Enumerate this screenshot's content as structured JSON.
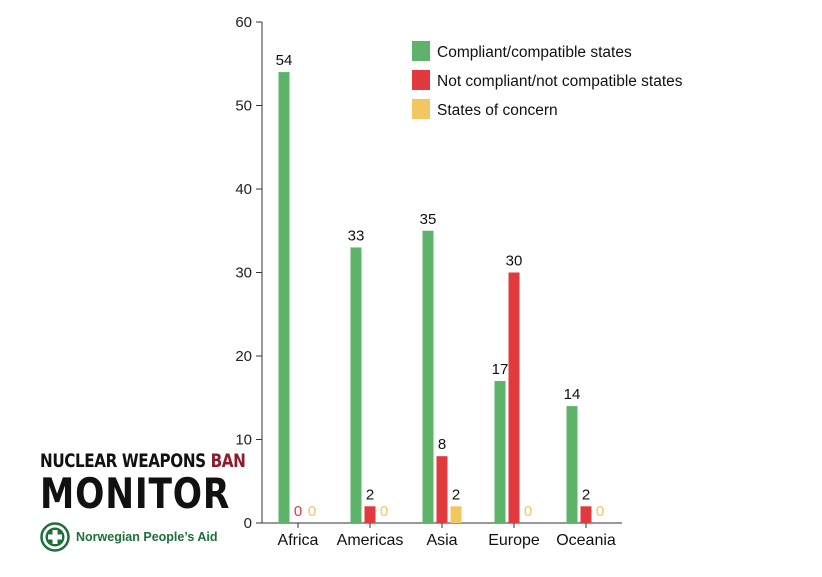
{
  "chart_data": {
    "type": "bar",
    "categories": [
      "Africa",
      "Americas",
      "Asia",
      "Europe",
      "Oceania"
    ],
    "series": [
      {
        "name": "Compliant/compatible states",
        "color": "#5db36a",
        "values": [
          54,
          33,
          35,
          17,
          14
        ]
      },
      {
        "name": "Not compliant/not compatible states",
        "color": "#e0393e",
        "values": [
          0,
          2,
          8,
          30,
          2
        ]
      },
      {
        "name": "States of concern",
        "color": "#f2c661",
        "values": [
          0,
          0,
          2,
          0,
          0
        ]
      }
    ],
    "ylim": [
      0,
      60
    ],
    "yticks": [
      0,
      10,
      20,
      30,
      40,
      50,
      60
    ],
    "legend_position": "top-right",
    "grid": false,
    "data_labels": true
  },
  "branding": {
    "logo_line1_a": "NUCLEAR WEAPONS ",
    "logo_line1_b": "BAN",
    "logo_line2": "MONITOR",
    "org_name": "Norwegian People’s Aid",
    "org_color": "#1f6f3a",
    "ban_color": "#8b1c2c"
  }
}
